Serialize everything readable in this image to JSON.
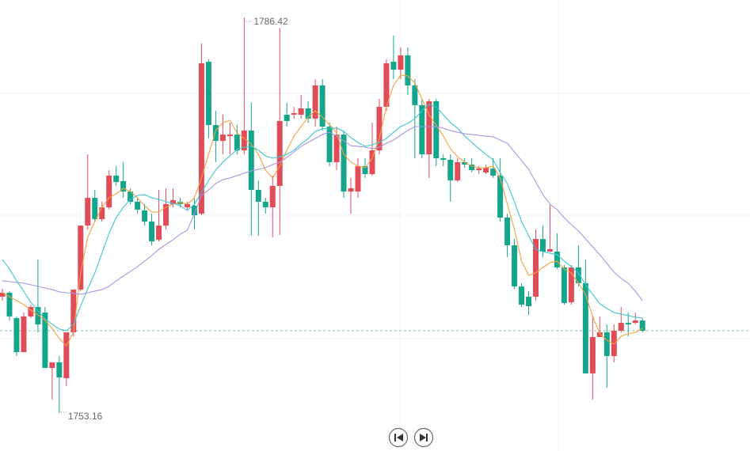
{
  "chart_data": {
    "type": "candlestick",
    "up_color": "#e04c58",
    "down_color": "#14a68a",
    "open": [
      1762.94,
      1763.27,
      1761.14,
      1758.28,
      1761.28,
      1762.07,
      1761.61,
      1756.95,
      1757.42,
      1756.09,
      1759.94,
      1763.54,
      1768.92,
      1771.25,
      1769.46,
      1770.45,
      1773.12,
      1772.65,
      1771.78,
      1770.92,
      1770.19,
      1769.26,
      1767.73,
      1768.92,
      1770.72,
      1770.92,
      1770.45,
      1770.59,
      1769.92,
      1782.69,
      1777.37,
      1776.04,
      1776.44,
      1776.57,
      1775.24,
      1776.91,
      1771.92,
      1770.92,
      1770.45,
      1772.25,
      1778.24,
      1778.24,
      1778.24,
      1778.77,
      1777.91,
      1780.7,
      1777.24,
      1774.25,
      1776.57,
      1771.78,
      1771.78,
      1773.91,
      1773.25,
      1775.24,
      1778.9,
      1782.69,
      1782.03,
      1783.23,
      1780.7,
      1779.04,
      1774.91,
      1779.37,
      1774.58,
      1774.45,
      1772.72,
      1774.25,
      1774.05,
      1773.58,
      1773.38,
      1773.71,
      1773.12,
      1769.59,
      1767.26,
      1763.8,
      1762.94,
      1762.94,
      1767.79,
      1766.73,
      1766.73,
      1765.4,
      1762.47,
      1765.4,
      1764.07,
      1756.49,
      1759.55,
      1759.94,
      1757.95,
      1760.08,
      1760.74,
      1760.74,
      1760.94
    ],
    "high": [
      1763.6,
      1763.4,
      1761.28,
      1761.61,
      1762.27,
      1766.06,
      1762.07,
      1757.42,
      1757.95,
      1759.94,
      1763.54,
      1768.92,
      1774.91,
      1771.92,
      1770.92,
      1773.58,
      1773.91,
      1774.25,
      1772.05,
      1771.25,
      1770.72,
      1769.92,
      1771.92,
      1772.05,
      1772.05,
      1771.25,
      1770.92,
      1771.25,
      1784.23,
      1782.89,
      1778.57,
      1778.24,
      1777.57,
      1777.37,
      1786.42,
      1779.24,
      1772.72,
      1771.25,
      1773.12,
      1785.55,
      1779.24,
      1778.9,
      1779.9,
      1779.37,
      1781.23,
      1781.23,
      1777.57,
      1777.24,
      1776.91,
      1772.92,
      1774.58,
      1774.58,
      1777.57,
      1779.57,
      1782.89,
      1784.89,
      1783.89,
      1783.89,
      1781.23,
      1779.57,
      1779.57,
      1779.57,
      1774.91,
      1774.91,
      1774.58,
      1774.58,
      1774.58,
      1773.91,
      1774.05,
      1774.58,
      1774.58,
      1769.92,
      1767.79,
      1764.07,
      1763.4,
      1768.59,
      1768.92,
      1770.72,
      1768.26,
      1765.6,
      1765.6,
      1767.26,
      1766.06,
      1761.28,
      1761.28,
      1760.61,
      1760.61,
      1762.07,
      1761.61,
      1761.61,
      1761.14
    ],
    "low": [
      1762.61,
      1760.94,
      1757.95,
      1758.28,
      1761.14,
      1759.94,
      1756.95,
      1754.29,
      1753.16,
      1755.42,
      1759.61,
      1763.4,
      1768.59,
      1769.26,
      1769.26,
      1770.26,
      1772.25,
      1771.25,
      1770.72,
      1769.92,
      1768.92,
      1767.26,
      1767.59,
      1768.59,
      1770.45,
      1770.45,
      1770.26,
      1768.59,
      1769.79,
      1776.24,
      1774.25,
      1774.91,
      1774.91,
      1774.91,
      1774.91,
      1768.06,
      1768.06,
      1769.92,
      1767.93,
      1768.12,
      1777.24,
      1777.91,
      1777.91,
      1777.57,
      1777.24,
      1776.91,
      1773.91,
      1773.58,
      1771.25,
      1769.92,
      1771.25,
      1772.92,
      1773.12,
      1774.91,
      1778.57,
      1781.23,
      1781.23,
      1779.9,
      1774.58,
      1774.58,
      1772.92,
      1773.91,
      1773.91,
      1770.92,
      1772.58,
      1773.78,
      1773.38,
      1773.25,
      1773.25,
      1772.92,
      1769.26,
      1766.26,
      1763.6,
      1762.07,
      1761.41,
      1762.61,
      1766.26,
      1766.73,
      1765.27,
      1762.27,
      1762.27,
      1763.8,
      1756.49,
      1754.29,
      1759.55,
      1755.29,
      1757.42,
      1759.94,
      1759.61,
      1760.61,
      1759.94
    ],
    "close": [
      1763.27,
      1761.28,
      1758.28,
      1761.28,
      1762.07,
      1760.61,
      1756.95,
      1757.42,
      1756.15,
      1759.94,
      1763.54,
      1768.92,
      1771.25,
      1769.46,
      1770.45,
      1773.12,
      1772.58,
      1771.78,
      1770.92,
      1770.26,
      1769.26,
      1767.59,
      1768.92,
      1770.72,
      1771.05,
      1770.72,
      1770.72,
      1769.79,
      1782.56,
      1777.37,
      1776.04,
      1776.57,
      1776.57,
      1775.24,
      1776.91,
      1771.92,
      1770.92,
      1770.45,
      1772.25,
      1777.71,
      1777.71,
      1778.37,
      1778.77,
      1777.91,
      1780.7,
      1777.24,
      1774.25,
      1776.57,
      1771.78,
      1772.05,
      1773.91,
      1773.25,
      1775.24,
      1778.9,
      1782.56,
      1782.03,
      1783.23,
      1780.7,
      1779.04,
      1774.91,
      1779.37,
      1774.58,
      1774.45,
      1772.72,
      1774.25,
      1774.05,
      1773.58,
      1773.71,
      1773.78,
      1773.12,
      1769.59,
      1767.26,
      1763.8,
      1762.27,
      1762.14,
      1767.79,
      1766.73,
      1766.93,
      1765.4,
      1762.41,
      1765.4,
      1764.07,
      1756.49,
      1759.55,
      1759.94,
      1757.95,
      1760.08,
      1760.74,
      1760.61,
      1760.94,
      1760.08
    ],
    "lines": [
      {
        "color": "#f3a040",
        "values": [
          1763.27,
          1762.94,
          1762.61,
          1762.28,
          1761.81,
          1761.41,
          1760.95,
          1760.28,
          1759.42,
          1758.82,
          1759.95,
          1764.94,
          1767.93,
          1769.26,
          1770.46,
          1771.25,
          1771.59,
          1772.05,
          1771.79,
          1771.25,
          1770.59,
          1770.06,
          1770.06,
          1770.46,
          1770.72,
          1770.86,
          1770.72,
          1771.25,
          1772.92,
          1774.91,
          1776.91,
          1777.57,
          1777.77,
          1776.71,
          1776.24,
          1775.78,
          1774.91,
          1773.58,
          1772.92,
          1773.92,
          1775.25,
          1776.44,
          1777.24,
          1778.04,
          1778.57,
          1778.04,
          1777.37,
          1776.71,
          1774.91,
          1774.25,
          1773.92,
          1773.78,
          1774.58,
          1776.24,
          1778.9,
          1780.7,
          1781.56,
          1781.5,
          1780.9,
          1779.57,
          1778.24,
          1777.37,
          1776.44,
          1775.38,
          1774.71,
          1774.25,
          1773.92,
          1773.78,
          1773.78,
          1773.92,
          1772.92,
          1770.72,
          1768.59,
          1765.93,
          1764.74,
          1764.94,
          1765.4,
          1765.8,
          1765.93,
          1765.27,
          1764.94,
          1764.07,
          1763.14,
          1761.28,
          1759.82,
          1759.28,
          1758.95,
          1759.62,
          1759.82,
          1759.95,
          1760.28
        ]
      },
      {
        "color": "#3cc6cf",
        "values": [
          1766.07,
          1765.27,
          1764.27,
          1763.41,
          1762.47,
          1761.75,
          1761.08,
          1760.62,
          1760.22,
          1760.08,
          1760.62,
          1762.15,
          1763.61,
          1764.94,
          1766.6,
          1768.26,
          1769.59,
          1770.46,
          1771.12,
          1771.45,
          1771.52,
          1771.25,
          1771.12,
          1770.92,
          1770.79,
          1770.59,
          1770.19,
          1770.72,
          1771.72,
          1772.72,
          1773.58,
          1774.25,
          1774.78,
          1775.31,
          1775.51,
          1775.58,
          1775.25,
          1774.78,
          1774.58,
          1774.71,
          1774.91,
          1775.25,
          1775.78,
          1776.24,
          1776.84,
          1777.04,
          1777.11,
          1777.11,
          1776.84,
          1776.31,
          1775.91,
          1775.58,
          1775.71,
          1775.91,
          1776.24,
          1776.77,
          1777.24,
          1777.51,
          1777.91,
          1778.57,
          1779.1,
          1778.9,
          1778.24,
          1777.57,
          1777.11,
          1776.44,
          1775.91,
          1775.38,
          1774.91,
          1774.45,
          1773.38,
          1772.45,
          1770.92,
          1769.26,
          1768.06,
          1766.93,
          1766.73,
          1766.6,
          1766.47,
          1765.93,
          1765.47,
          1764.94,
          1763.94,
          1763.14,
          1762.34,
          1761.95,
          1761.61,
          1761.48,
          1761.35,
          1761.21,
          1761.15
        ]
      },
      {
        "color": "#a995e0",
        "values": [
          1764.27,
          1764.21,
          1764.14,
          1764.07,
          1763.94,
          1763.81,
          1763.67,
          1763.54,
          1763.34,
          1763.27,
          1763.21,
          1763.14,
          1763.27,
          1763.41,
          1763.54,
          1763.81,
          1764.27,
          1764.67,
          1765.07,
          1765.47,
          1765.93,
          1766.4,
          1766.93,
          1767.33,
          1767.73,
          1768.2,
          1768.53,
          1769.93,
          1771.45,
          1771.92,
          1772.45,
          1772.78,
          1772.92,
          1773.12,
          1773.32,
          1773.52,
          1773.65,
          1773.78,
          1774.05,
          1774.25,
          1774.65,
          1775.11,
          1775.58,
          1775.91,
          1776.24,
          1776.58,
          1776.77,
          1776.44,
          1776.04,
          1775.64,
          1775.58,
          1775.51,
          1775.38,
          1775.51,
          1775.84,
          1776.11,
          1776.51,
          1776.91,
          1777.24,
          1777.24,
          1777.24,
          1777.24,
          1777.11,
          1776.91,
          1776.77,
          1776.64,
          1776.58,
          1776.51,
          1776.44,
          1776.38,
          1776.11,
          1775.84,
          1775.11,
          1774.38,
          1773.65,
          1772.59,
          1771.52,
          1770.72,
          1770.26,
          1769.59,
          1768.99,
          1768.46,
          1767.8,
          1767.13,
          1766.47,
          1765.74,
          1765.0,
          1764.47,
          1764.07,
          1763.41,
          1762.61
        ]
      }
    ],
    "last_price_color": "#7cc8b4"
  }
}
